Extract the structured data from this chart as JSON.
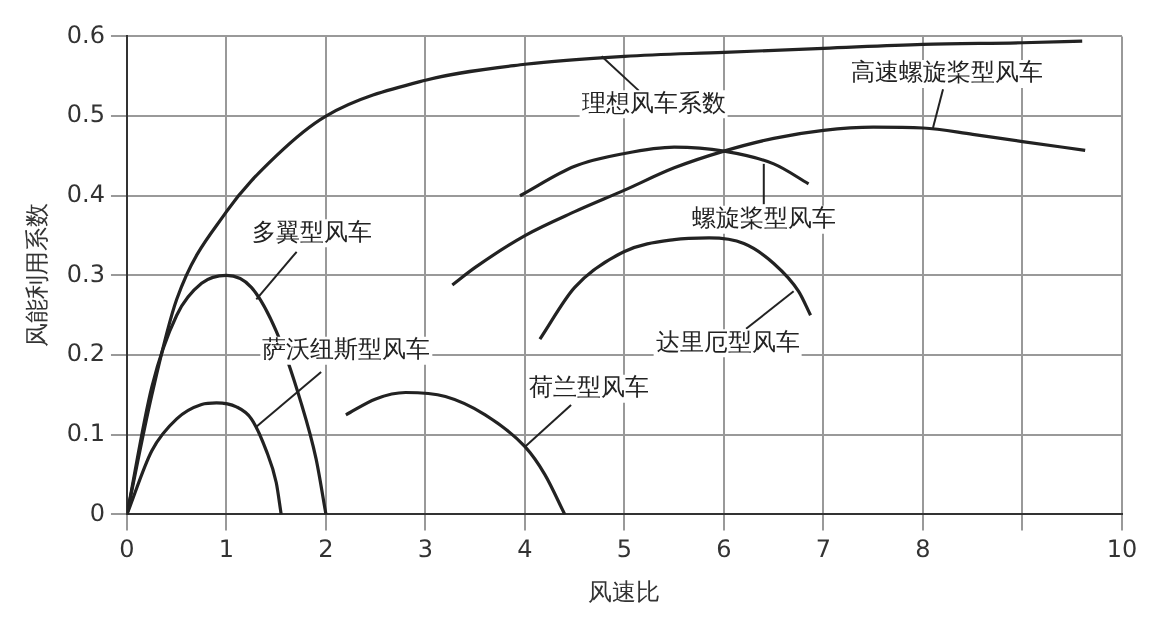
{
  "chart_data": {
    "type": "line",
    "xlabel": "风速比",
    "ylabel": "风能利用系数",
    "xlim": [
      0,
      10
    ],
    "xticks": [
      0,
      1,
      2,
      3,
      4,
      5,
      6,
      7,
      8,
      {
        "value": 9,
        "label": null
      },
      10
    ],
    "ylim": [
      0,
      0.6
    ],
    "yticks": [
      0,
      0.1,
      0.2,
      0.3,
      0.4,
      0.5,
      0.6
    ],
    "grid": true,
    "legend": false,
    "marker": "none",
    "line_style": "solid",
    "series": [
      {
        "color": "#222222",
        "x": [
          0,
          0.25,
          0.5,
          1,
          1.5,
          2,
          3,
          4,
          5,
          6,
          7,
          8,
          9,
          9.6
        ],
        "values": [
          0,
          0.15,
          0.27,
          0.38,
          0.45,
          0.5,
          0.545,
          0.565,
          0.575,
          0.58,
          0.585,
          0.59,
          0.592,
          0.594
        ]
      },
      {
        "color": "#222222",
        "x": [
          3.27,
          3.5,
          4,
          4.5,
          5,
          5.5,
          6,
          6.5,
          7,
          7.5,
          8,
          8.5,
          9,
          9.63
        ],
        "values": [
          0.288,
          0.31,
          0.35,
          0.38,
          0.407,
          0.435,
          0.456,
          0.472,
          0.482,
          0.486,
          0.485,
          0.477,
          0.468,
          0.457
        ]
      },
      {
        "color": "#222222",
        "x": [
          3.95,
          4.5,
          5,
          5.5,
          6,
          6.5,
          6.85
        ],
        "values": [
          0.4,
          0.437,
          0.453,
          0.461,
          0.456,
          0.44,
          0.415
        ]
      },
      {
        "color": "#222222",
        "x": [
          4.15,
          4.5,
          5,
          5.5,
          5.85,
          6.2,
          6.5,
          6.75,
          6.87
        ],
        "values": [
          0.22,
          0.285,
          0.33,
          0.345,
          0.347,
          0.34,
          0.315,
          0.28,
          0.25
        ]
      },
      {
        "color": "#222222",
        "x": [
          2.2,
          2.5,
          2.8,
          3.2,
          3.6,
          4,
          4.2,
          4.4
        ],
        "values": [
          0.125,
          0.145,
          0.153,
          0.148,
          0.125,
          0.085,
          0.05,
          0
        ]
      },
      {
        "color": "#222222",
        "x": [
          0,
          0.25,
          0.5,
          0.75,
          1,
          1.25,
          1.5,
          1.75,
          1.9,
          2
        ],
        "values": [
          0,
          0.16,
          0.25,
          0.29,
          0.3,
          0.285,
          0.23,
          0.14,
          0.07,
          0
        ]
      },
      {
        "color": "#222222",
        "x": [
          0,
          0.25,
          0.5,
          0.75,
          0.9,
          1.1,
          1.25,
          1.4,
          1.5,
          1.55
        ],
        "values": [
          0,
          0.08,
          0.12,
          0.138,
          0.14,
          0.135,
          0.12,
          0.08,
          0.04,
          0
        ]
      }
    ],
    "annotations": [
      {
        "text": "理想风车系数",
        "x": 4.77,
        "y": 0.575
      },
      {
        "text": "高速螺旋桨型风车",
        "x": 8.1,
        "y": 0.485
      },
      {
        "text": "螺旋桨型风车",
        "x": 6.4,
        "y": 0.44
      },
      {
        "text": "达里厄型风车",
        "x": 6.7,
        "y": 0.28
      },
      {
        "text": "荷兰型风车",
        "x": 4,
        "y": 0.085
      },
      {
        "text": "多翼型风车",
        "x": 1.3,
        "y": 0.27
      },
      {
        "text": "萨沃纽斯型风车",
        "x": 1.3,
        "y": 0.11
      }
    ]
  }
}
